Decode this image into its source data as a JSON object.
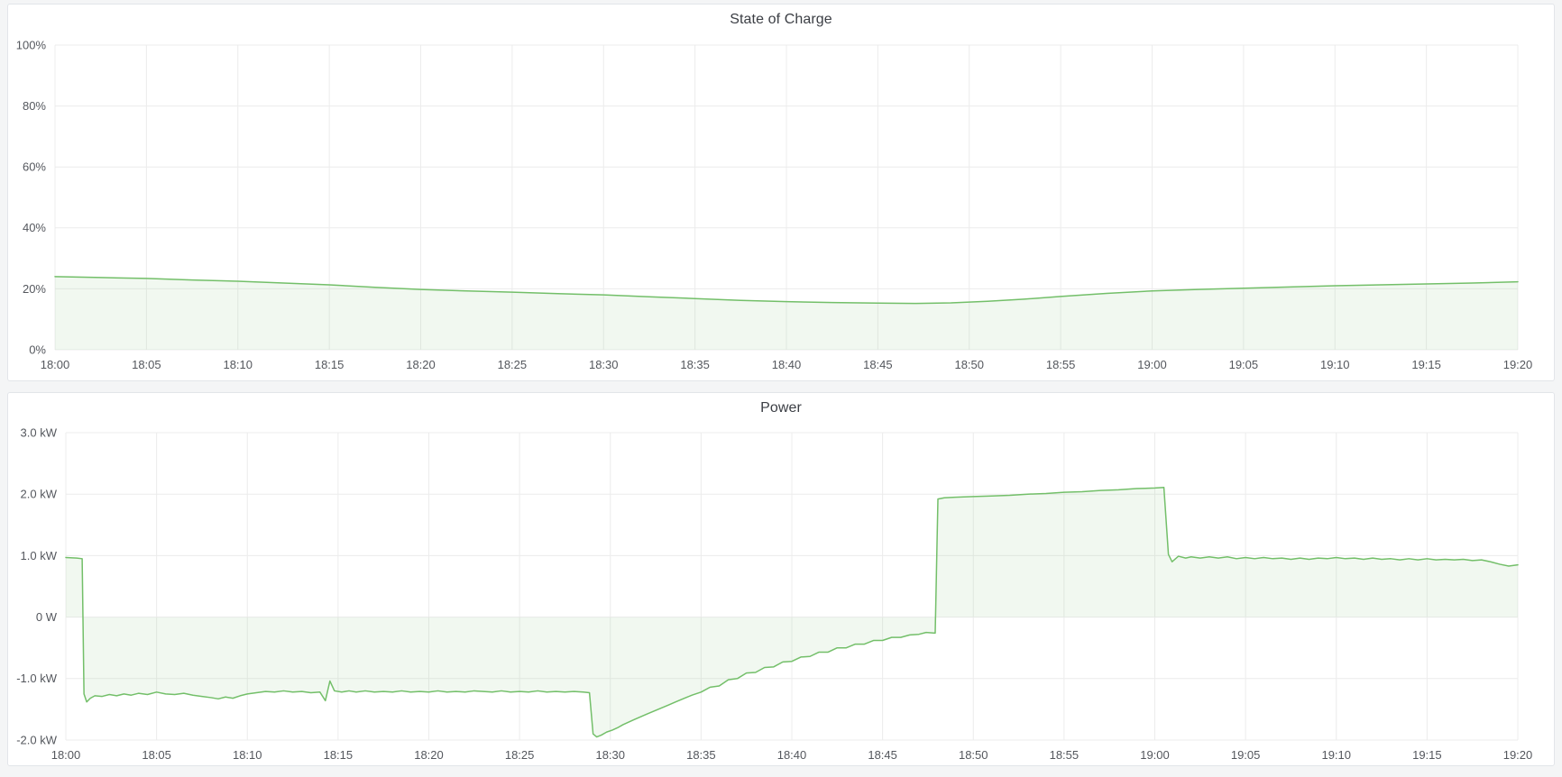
{
  "page": {
    "background_color": "#f4f5f6",
    "panel_border_color": "#e2e5e9",
    "grid_color": "#ececec",
    "tick_text_color": "#54575d",
    "title_text_color": "#3b3e44"
  },
  "chart_data": [
    {
      "type": "area",
      "title": "State of Charge",
      "xlabel": "",
      "ylabel": "",
      "x_unit": "time_of_day",
      "x_range_minutes": [
        0,
        80
      ],
      "x_tick_minutes": [
        0,
        5,
        10,
        15,
        20,
        25,
        30,
        35,
        40,
        45,
        50,
        55,
        60,
        65,
        70,
        75,
        80
      ],
      "x_tick_labels": [
        "18:00",
        "18:05",
        "18:10",
        "18:15",
        "18:20",
        "18:25",
        "18:30",
        "18:35",
        "18:40",
        "18:45",
        "18:50",
        "18:55",
        "19:00",
        "19:05",
        "19:10",
        "19:15",
        "19:20"
      ],
      "ylim": [
        0,
        100
      ],
      "y_tick_values": [
        0,
        20,
        40,
        60,
        80,
        100
      ],
      "y_tick_labels": [
        "0%",
        "20%",
        "40%",
        "60%",
        "80%",
        "100%"
      ],
      "baseline": 0,
      "grid": true,
      "legend": "none",
      "line_color": "#73bf69",
      "fill_color": "rgba(115,191,105,0.10)",
      "points": [
        [
          0,
          24.0
        ],
        [
          2.5,
          23.7
        ],
        [
          5,
          23.4
        ],
        [
          7.5,
          22.9
        ],
        [
          10,
          22.5
        ],
        [
          12.5,
          21.9
        ],
        [
          15,
          21.3
        ],
        [
          17.5,
          20.5
        ],
        [
          20,
          19.8
        ],
        [
          22.5,
          19.3
        ],
        [
          25,
          18.9
        ],
        [
          27.5,
          18.4
        ],
        [
          30,
          18.0
        ],
        [
          32.5,
          17.4
        ],
        [
          35,
          16.8
        ],
        [
          37.5,
          16.2
        ],
        [
          40,
          15.8
        ],
        [
          42.5,
          15.5
        ],
        [
          45,
          15.3
        ],
        [
          47,
          15.2
        ],
        [
          49,
          15.4
        ],
        [
          51,
          15.9
        ],
        [
          53,
          16.6
        ],
        [
          55,
          17.5
        ],
        [
          57.5,
          18.5
        ],
        [
          60,
          19.3
        ],
        [
          62.5,
          19.8
        ],
        [
          65,
          20.2
        ],
        [
          67.5,
          20.6
        ],
        [
          70,
          21.0
        ],
        [
          72.5,
          21.3
        ],
        [
          75,
          21.6
        ],
        [
          77.5,
          21.9
        ],
        [
          80,
          22.3
        ]
      ]
    },
    {
      "type": "area",
      "title": "Power",
      "xlabel": "",
      "ylabel": "",
      "x_unit": "time_of_day",
      "x_range_minutes": [
        0,
        80
      ],
      "x_tick_minutes": [
        0,
        5,
        10,
        15,
        20,
        25,
        30,
        35,
        40,
        45,
        50,
        55,
        60,
        65,
        70,
        75,
        80
      ],
      "x_tick_labels": [
        "18:00",
        "18:05",
        "18:10",
        "18:15",
        "18:20",
        "18:25",
        "18:30",
        "18:35",
        "18:40",
        "18:45",
        "18:50",
        "18:55",
        "19:00",
        "19:05",
        "19:10",
        "19:15",
        "19:20"
      ],
      "ylim": [
        -2,
        3
      ],
      "y_tick_values": [
        -2,
        -1,
        0,
        1,
        2,
        3
      ],
      "y_tick_labels": [
        "-2.0 kW",
        "-1.0 kW",
        "0 W",
        "1.0 kW",
        "2.0 kW",
        "3.0 kW"
      ],
      "baseline": 0,
      "grid": true,
      "legend": "none",
      "line_color": "#73bf69",
      "fill_color": "rgba(115,191,105,0.10)",
      "points": [
        [
          0,
          0.97
        ],
        [
          0.6,
          0.96
        ],
        [
          0.9,
          0.95
        ],
        [
          1.0,
          -1.25
        ],
        [
          1.15,
          -1.38
        ],
        [
          1.35,
          -1.32
        ],
        [
          1.6,
          -1.28
        ],
        [
          2,
          -1.29
        ],
        [
          2.4,
          -1.26
        ],
        [
          2.8,
          -1.28
        ],
        [
          3.2,
          -1.25
        ],
        [
          3.6,
          -1.27
        ],
        [
          4,
          -1.24
        ],
        [
          4.5,
          -1.26
        ],
        [
          5,
          -1.22
        ],
        [
          5.5,
          -1.25
        ],
        [
          6,
          -1.26
        ],
        [
          6.5,
          -1.24
        ],
        [
          7,
          -1.27
        ],
        [
          7.5,
          -1.29
        ],
        [
          8,
          -1.31
        ],
        [
          8.4,
          -1.33
        ],
        [
          8.8,
          -1.3
        ],
        [
          9.2,
          -1.32
        ],
        [
          9.6,
          -1.28
        ],
        [
          10,
          -1.25
        ],
        [
          10.5,
          -1.23
        ],
        [
          11,
          -1.21
        ],
        [
          11.5,
          -1.22
        ],
        [
          12,
          -1.2
        ],
        [
          12.5,
          -1.22
        ],
        [
          13,
          -1.21
        ],
        [
          13.5,
          -1.23
        ],
        [
          14,
          -1.22
        ],
        [
          14.3,
          -1.36
        ],
        [
          14.55,
          -1.04
        ],
        [
          14.8,
          -1.2
        ],
        [
          15.2,
          -1.22
        ],
        [
          15.6,
          -1.2
        ],
        [
          16,
          -1.22
        ],
        [
          16.5,
          -1.2
        ],
        [
          17,
          -1.22
        ],
        [
          17.5,
          -1.21
        ],
        [
          18,
          -1.22
        ],
        [
          18.5,
          -1.2
        ],
        [
          19,
          -1.22
        ],
        [
          19.5,
          -1.21
        ],
        [
          20,
          -1.22
        ],
        [
          20.5,
          -1.2
        ],
        [
          21,
          -1.22
        ],
        [
          21.5,
          -1.21
        ],
        [
          22,
          -1.22
        ],
        [
          22.5,
          -1.2
        ],
        [
          23,
          -1.21
        ],
        [
          23.5,
          -1.22
        ],
        [
          24,
          -1.2
        ],
        [
          24.5,
          -1.22
        ],
        [
          25,
          -1.21
        ],
        [
          25.5,
          -1.22
        ],
        [
          26,
          -1.2
        ],
        [
          26.5,
          -1.22
        ],
        [
          27,
          -1.21
        ],
        [
          27.5,
          -1.22
        ],
        [
          28,
          -1.21
        ],
        [
          28.5,
          -1.22
        ],
        [
          28.85,
          -1.23
        ],
        [
          29.05,
          -1.9
        ],
        [
          29.25,
          -1.95
        ],
        [
          29.5,
          -1.92
        ],
        [
          29.8,
          -1.87
        ],
        [
          30.1,
          -1.84
        ],
        [
          30.4,
          -1.8
        ],
        [
          30.7,
          -1.75
        ],
        [
          31,
          -1.71
        ],
        [
          31.3,
          -1.67
        ],
        [
          31.6,
          -1.63
        ],
        [
          32,
          -1.58
        ],
        [
          32.4,
          -1.53
        ],
        [
          32.8,
          -1.48
        ],
        [
          33.2,
          -1.43
        ],
        [
          33.6,
          -1.38
        ],
        [
          34,
          -1.33
        ],
        [
          34.5,
          -1.27
        ],
        [
          35,
          -1.22
        ],
        [
          35.5,
          -1.14
        ],
        [
          36,
          -1.12
        ],
        [
          36.5,
          -1.02
        ],
        [
          37,
          -1.0
        ],
        [
          37.5,
          -0.91
        ],
        [
          38,
          -0.9
        ],
        [
          38.5,
          -0.82
        ],
        [
          39,
          -0.81
        ],
        [
          39.5,
          -0.73
        ],
        [
          40,
          -0.72
        ],
        [
          40.5,
          -0.65
        ],
        [
          41,
          -0.64
        ],
        [
          41.5,
          -0.57
        ],
        [
          42,
          -0.57
        ],
        [
          42.5,
          -0.5
        ],
        [
          43,
          -0.5
        ],
        [
          43.5,
          -0.44
        ],
        [
          44,
          -0.44
        ],
        [
          44.5,
          -0.38
        ],
        [
          45,
          -0.38
        ],
        [
          45.5,
          -0.33
        ],
        [
          46,
          -0.33
        ],
        [
          46.5,
          -0.29
        ],
        [
          47,
          -0.28
        ],
        [
          47.4,
          -0.25
        ],
        [
          47.9,
          -0.26
        ],
        [
          48.05,
          1.92
        ],
        [
          48.4,
          1.94
        ],
        [
          49,
          1.95
        ],
        [
          50,
          1.96
        ],
        [
          51,
          1.97
        ],
        [
          52,
          1.98
        ],
        [
          53,
          2.0
        ],
        [
          54,
          2.01
        ],
        [
          55,
          2.03
        ],
        [
          56,
          2.04
        ],
        [
          57,
          2.06
        ],
        [
          58,
          2.07
        ],
        [
          59,
          2.09
        ],
        [
          60,
          2.1
        ],
        [
          60.5,
          2.11
        ],
        [
          60.75,
          1.02
        ],
        [
          60.95,
          0.9
        ],
        [
          61.3,
          0.99
        ],
        [
          61.7,
          0.96
        ],
        [
          62,
          0.98
        ],
        [
          62.5,
          0.96
        ],
        [
          63,
          0.98
        ],
        [
          63.5,
          0.96
        ],
        [
          64,
          0.98
        ],
        [
          64.5,
          0.95
        ],
        [
          65,
          0.97
        ],
        [
          65.5,
          0.95
        ],
        [
          66,
          0.97
        ],
        [
          66.5,
          0.95
        ],
        [
          67,
          0.96
        ],
        [
          67.5,
          0.94
        ],
        [
          68,
          0.96
        ],
        [
          68.5,
          0.94
        ],
        [
          69,
          0.96
        ],
        [
          69.5,
          0.95
        ],
        [
          70,
          0.97
        ],
        [
          70.5,
          0.95
        ],
        [
          71,
          0.96
        ],
        [
          71.5,
          0.94
        ],
        [
          72,
          0.96
        ],
        [
          72.5,
          0.94
        ],
        [
          73,
          0.95
        ],
        [
          73.5,
          0.93
        ],
        [
          74,
          0.95
        ],
        [
          74.5,
          0.93
        ],
        [
          75,
          0.95
        ],
        [
          75.5,
          0.93
        ],
        [
          76,
          0.94
        ],
        [
          76.5,
          0.93
        ],
        [
          77,
          0.94
        ],
        [
          77.5,
          0.92
        ],
        [
          78,
          0.93
        ],
        [
          78.5,
          0.9
        ],
        [
          79,
          0.86
        ],
        [
          79.5,
          0.83
        ],
        [
          80,
          0.85
        ]
      ]
    }
  ]
}
